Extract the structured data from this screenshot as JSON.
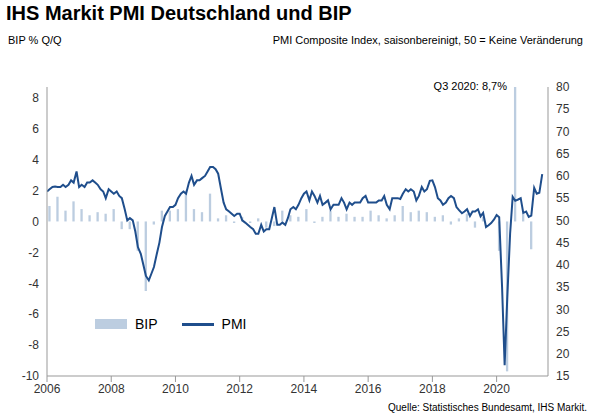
{
  "chart_data": {
    "type": "combo",
    "title": "IHS Markit PMI Deutschland und BIP",
    "ylabel": "BIP % Q/Q",
    "y2label": "PMI Composite Index, saisonbereinigt, 50 = Keine Veränderung",
    "annotations": [
      "Q3 2020: 8,7%"
    ],
    "source": "Quelle: Statistisches Bundesamt, IHS Markit.",
    "grid": false,
    "legend": "lower left",
    "xlim": [
      2006,
      2021.6
    ],
    "xticks": [
      2006,
      2008,
      2010,
      2012,
      2014,
      2016,
      2018,
      2020
    ],
    "ylim": [
      -10,
      8.7
    ],
    "yticks": [
      -10,
      -8,
      -6,
      -4,
      -2,
      0,
      2,
      4,
      6,
      8
    ],
    "y2lim": [
      15,
      80
    ],
    "y2ticks": [
      15,
      20,
      25,
      30,
      35,
      40,
      45,
      50,
      55,
      60,
      65,
      70,
      75,
      80
    ],
    "x": [
      2006,
      2006.08,
      2006.17,
      2006.25,
      2006.33,
      2006.42,
      2006.5,
      2006.58,
      2006.67,
      2006.75,
      2006.83,
      2006.92,
      2007,
      2007.08,
      2007.17,
      2007.25,
      2007.33,
      2007.42,
      2007.5,
      2007.58,
      2007.67,
      2007.75,
      2007.83,
      2007.92,
      2008,
      2008.08,
      2008.17,
      2008.25,
      2008.33,
      2008.42,
      2008.5,
      2008.58,
      2008.67,
      2008.75,
      2008.83,
      2008.92,
      2009,
      2009.08,
      2009.17,
      2009.25,
      2009.33,
      2009.42,
      2009.5,
      2009.58,
      2009.67,
      2009.75,
      2009.83,
      2009.92,
      2010,
      2010.08,
      2010.17,
      2010.25,
      2010.33,
      2010.42,
      2010.5,
      2010.58,
      2010.67,
      2010.75,
      2010.83,
      2010.92,
      2011,
      2011.08,
      2011.17,
      2011.25,
      2011.33,
      2011.42,
      2011.5,
      2011.58,
      2011.67,
      2011.75,
      2011.83,
      2011.92,
      2012,
      2012.08,
      2012.17,
      2012.25,
      2012.33,
      2012.42,
      2012.5,
      2012.58,
      2012.67,
      2012.75,
      2012.83,
      2012.92,
      2013,
      2013.08,
      2013.17,
      2013.25,
      2013.33,
      2013.42,
      2013.5,
      2013.58,
      2013.67,
      2013.75,
      2013.83,
      2013.92,
      2014,
      2014.08,
      2014.17,
      2014.25,
      2014.33,
      2014.42,
      2014.5,
      2014.58,
      2014.67,
      2014.75,
      2014.83,
      2014.92,
      2015,
      2015.08,
      2015.17,
      2015.25,
      2015.33,
      2015.42,
      2015.5,
      2015.58,
      2015.67,
      2015.75,
      2015.83,
      2015.92,
      2016,
      2016.08,
      2016.17,
      2016.25,
      2016.33,
      2016.42,
      2016.5,
      2016.58,
      2016.67,
      2016.75,
      2016.83,
      2016.92,
      2017,
      2017.08,
      2017.17,
      2017.25,
      2017.33,
      2017.42,
      2017.5,
      2017.58,
      2017.67,
      2017.75,
      2017.83,
      2017.92,
      2018,
      2018.08,
      2018.17,
      2018.25,
      2018.33,
      2018.42,
      2018.5,
      2018.58,
      2018.67,
      2018.75,
      2018.83,
      2018.92,
      2019,
      2019.08,
      2019.17,
      2019.25,
      2019.33,
      2019.42,
      2019.5,
      2019.58,
      2019.67,
      2019.75,
      2019.83,
      2019.92,
      2020,
      2020.08,
      2020.17,
      2020.25,
      2020.33,
      2020.42,
      2020.5,
      2020.58,
      2020.67,
      2020.75,
      2020.83,
      2020.92,
      2021,
      2021.08,
      2021.17,
      2021.25,
      2021.33,
      2021.42
    ],
    "series": [
      {
        "name": "BIP",
        "type": "bar",
        "color": "#bccde0",
        "values": [
          null,
          1.0,
          null,
          null,
          1.6,
          null,
          null,
          0.7,
          null,
          null,
          1.3,
          null,
          null,
          0.8,
          null,
          null,
          0.4,
          null,
          null,
          0.6,
          null,
          null,
          0.5,
          null,
          null,
          0.8,
          null,
          null,
          -0.5,
          null,
          null,
          -0.5,
          null,
          null,
          -1.9,
          null,
          null,
          -4.5,
          null,
          null,
          -0.2,
          null,
          null,
          0.7,
          null,
          null,
          0.7,
          null,
          null,
          0.8,
          null,
          null,
          2.0,
          null,
          null,
          0.8,
          null,
          null,
          0.6,
          null,
          null,
          1.8,
          null,
          null,
          0.2,
          null,
          null,
          0.4,
          null,
          null,
          -0.1,
          null,
          null,
          0.3,
          null,
          null,
          -0.1,
          null,
          null,
          0.2,
          null,
          null,
          -0.4,
          null,
          null,
          -0.3,
          null,
          null,
          0.7,
          null,
          null,
          0.4,
          null,
          null,
          0.3,
          null,
          null,
          0.8,
          null,
          null,
          -0.1,
          null,
          null,
          0.3,
          null,
          null,
          0.7,
          null,
          null,
          0.3,
          null,
          null,
          0.5,
          null,
          null,
          0.3,
          null,
          null,
          0.3,
          null,
          null,
          0.7,
          null,
          null,
          0.4,
          null,
          null,
          0.2,
          null,
          null,
          0.4,
          null,
          null,
          1.0,
          null,
          null,
          0.6,
          null,
          null,
          0.7,
          null,
          null,
          0.6,
          null,
          null,
          0.3,
          null,
          null,
          0.4,
          null,
          null,
          -0.2,
          null,
          null,
          0.2,
          null,
          null,
          0.5,
          null,
          null,
          -0.4,
          null,
          null,
          0.3,
          null,
          null,
          0.0,
          null,
          null,
          -1.9,
          null,
          null,
          -9.7,
          null,
          null,
          8.7,
          null,
          null,
          0.5,
          null,
          null,
          -1.8,
          null,
          null,
          null,
          null
        ]
      },
      {
        "name": "PMI",
        "type": "line",
        "axis": "y2",
        "color": "#1f4e8c",
        "values": [
          56.5,
          57,
          57.5,
          57.6,
          57.5,
          57.5,
          58,
          57.5,
          58,
          59,
          58.5,
          61,
          57.5,
          58,
          57.5,
          58.5,
          58.5,
          59,
          58.5,
          58,
          57,
          56.5,
          55,
          57,
          56.5,
          56,
          56.5,
          55.5,
          55,
          52.5,
          50,
          50.5,
          50,
          47.5,
          44,
          42.5,
          40,
          37.5,
          36.5,
          38,
          39.5,
          42.5,
          45,
          48.5,
          51,
          52,
          53,
          53,
          53.5,
          55,
          56,
          56.5,
          56,
          58.5,
          60,
          58,
          59,
          59,
          59.5,
          60,
          61,
          62,
          62,
          61.5,
          60.5,
          57,
          54,
          52.5,
          52,
          51.5,
          51,
          51.5,
          51.5,
          50,
          49.5,
          49,
          48.5,
          48,
          47,
          47,
          49,
          47.5,
          48,
          48,
          50.5,
          53,
          49,
          49,
          49.5,
          49,
          50.5,
          52.5,
          53,
          52.5,
          53.5,
          55,
          56,
          56.5,
          54.5,
          56.5,
          55.5,
          54,
          55.5,
          53.5,
          54,
          54.5,
          52.5,
          53.5,
          53.5,
          53.5,
          55,
          54,
          52.5,
          54,
          53.5,
          54,
          54,
          54,
          55,
          55.5,
          54,
          54,
          54,
          54,
          54.5,
          54.5,
          55.5,
          53.5,
          52.5,
          55,
          55,
          55,
          54.8,
          56,
          57,
          56.5,
          57,
          56.5,
          54.5,
          55.5,
          57.5,
          56.5,
          57,
          58.9,
          59,
          57.5,
          55,
          54.5,
          53.5,
          54,
          55,
          55.5,
          55,
          53,
          52.3,
          51.6,
          52,
          52.5,
          51,
          52,
          52,
          52.5,
          50.9,
          51.7,
          48.5,
          48.9,
          49.4,
          50.2,
          51.2,
          50.7,
          35,
          17.4,
          32.3,
          47,
          55.3,
          54.4,
          54.7,
          55,
          51.7,
          52,
          50.8,
          51.1,
          57.3,
          56,
          56.2,
          60.4
        ]
      }
    ]
  }
}
